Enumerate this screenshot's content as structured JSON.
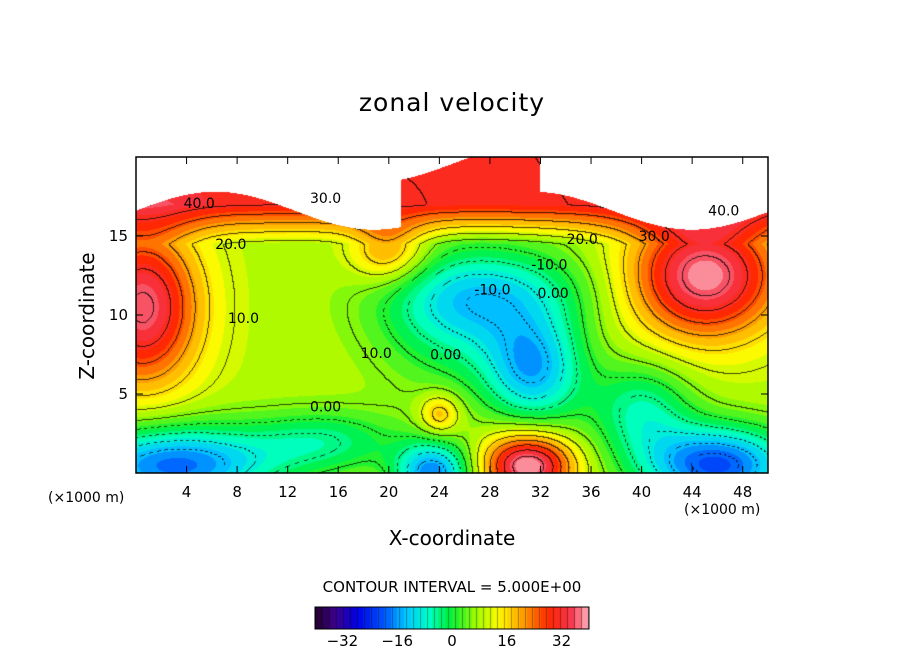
{
  "chart_data": {
    "type": "heatmap",
    "title": "zonal velocity",
    "xlabel": "X-coordinate",
    "ylabel": "Z-coordinate",
    "x_unit": "(×1000 m)",
    "xlim": [
      0,
      50
    ],
    "ylim": [
      0,
      20
    ],
    "x_ticks": [
      4,
      8,
      12,
      16,
      20,
      24,
      28,
      32,
      36,
      40,
      44,
      48
    ],
    "y_ticks": [
      5,
      10,
      15
    ],
    "contour_interval_text": "CONTOUR INTERVAL = 5.000E+00",
    "contour_labels": [
      {
        "text": "40.0",
        "x": 5,
        "z": 17.1
      },
      {
        "text": "30.0",
        "x": 15,
        "z": 17.4
      },
      {
        "text": "20.0",
        "x": 7.5,
        "z": 14.5
      },
      {
        "text": "10.0",
        "x": 8.5,
        "z": 9.8
      },
      {
        "text": "10.0",
        "x": 19,
        "z": 7.6
      },
      {
        "text": "0.00",
        "x": 15,
        "z": 4.2
      },
      {
        "text": "0.00",
        "x": 24.5,
        "z": 7.5
      },
      {
        "text": "-10.0",
        "x": 28.2,
        "z": 11.6
      },
      {
        "text": "0.00",
        "x": 33,
        "z": 11.4
      },
      {
        "text": "-10.0",
        "x": 32.7,
        "z": 13.2
      },
      {
        "text": "20.0",
        "x": 35.3,
        "z": 14.8
      },
      {
        "text": "30.0",
        "x": 41,
        "z": 15.0
      },
      {
        "text": "40.0",
        "x": 46.5,
        "z": 16.6
      }
    ],
    "colorbar": {
      "ticks": [
        -32,
        -16,
        0,
        16,
        32
      ],
      "tick_labels": [
        "−32",
        "−16",
        "0",
        "16",
        "32"
      ],
      "range": [
        -40,
        40
      ]
    },
    "features": [
      {
        "description": "strong positive jet aloft",
        "x": 44.5,
        "z": 12.5,
        "value": 40
      },
      {
        "description": "positive core",
        "x": 1.5,
        "z": 10.0,
        "value": 36
      },
      {
        "description": "upper level max",
        "x": 26,
        "z": 19.0,
        "value": 40
      },
      {
        "description": "negative core",
        "x": 31.5,
        "z": 6.3,
        "value": -18
      },
      {
        "description": "negative region",
        "x": 28,
        "z": 11.5,
        "value": -12
      },
      {
        "description": "surface negative",
        "x": 45.5,
        "z": 0.7,
        "value": -36
      },
      {
        "description": "surface negative",
        "x": 3,
        "z": 1.0,
        "value": -28
      },
      {
        "description": "surface negative",
        "x": 23.5,
        "z": 0.5,
        "value": -28
      },
      {
        "description": "surface positive",
        "x": 30.5,
        "z": 0.8,
        "value": 34
      },
      {
        "description": "local positive",
        "x": 24,
        "z": 3.8,
        "value": 20
      }
    ]
  }
}
